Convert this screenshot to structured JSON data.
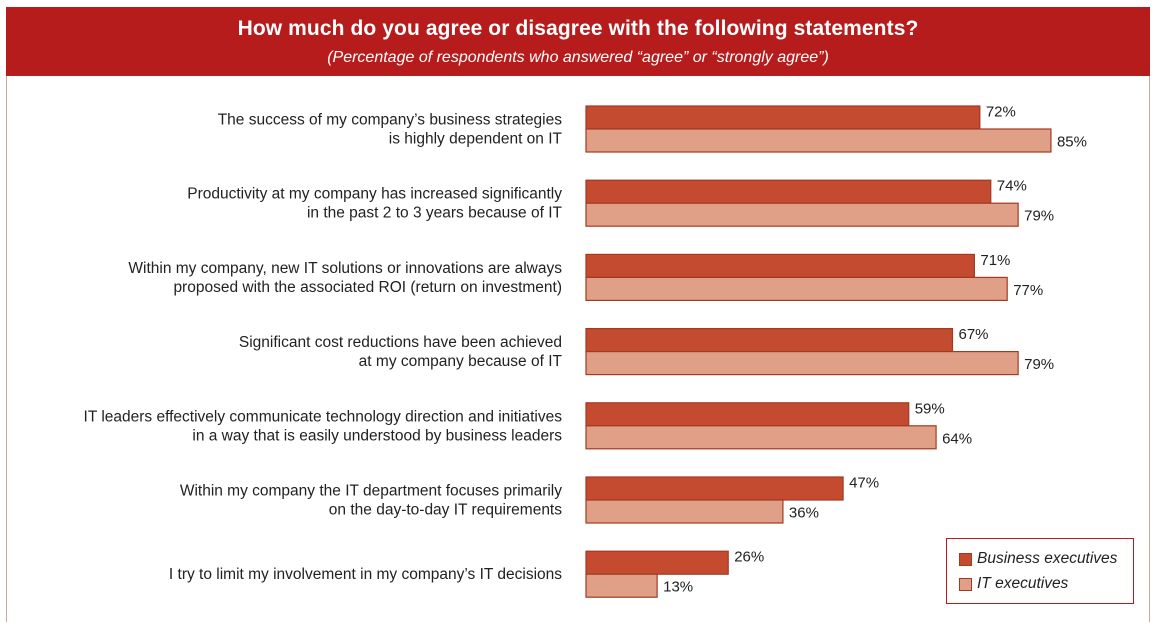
{
  "header": {
    "title": "How much do you agree or disagree with the following statements?",
    "subtitle": "(Percentage of respondents who answered “agree” or “strongly agree”)"
  },
  "colors": {
    "header_bg": "#b71c1c",
    "business": "#c44a30",
    "it": "#e0a088",
    "bar_border": "#a23a22"
  },
  "legend": {
    "business": "Business executives",
    "it": "IT executives"
  },
  "chart_data": {
    "type": "bar",
    "orientation": "horizontal",
    "title": "How much do you agree or disagree with the following statements?",
    "subtitle": "(Percentage of respondents who answered “agree” or “strongly agree”)",
    "value_suffix": "%",
    "xlim": [
      0,
      100
    ],
    "grid": false,
    "legend_position": "bottom-right",
    "categories": [
      [
        "The success of my company’s business strategies",
        "is highly dependent on IT"
      ],
      [
        "Productivity at my company has increased significantly",
        "in the past 2 to 3 years because of IT"
      ],
      [
        "Within my company, new IT solutions or innovations are always",
        "proposed with the associated ROI (return on investment)"
      ],
      [
        "Significant cost reductions have been achieved",
        "at my company because of IT"
      ],
      [
        "IT leaders effectively communicate technology direction and initiatives",
        "in a way that is easily understood by business leaders"
      ],
      [
        "Within my company the IT department focuses primarily",
        "on the day-to-day IT requirements"
      ],
      [
        "I try to limit my involvement in my company’s IT decisions"
      ]
    ],
    "series": [
      {
        "name": "Business executives",
        "values": [
          72,
          74,
          71,
          67,
          59,
          47,
          26
        ]
      },
      {
        "name": "IT executives",
        "values": [
          85,
          79,
          77,
          79,
          64,
          36,
          13
        ]
      }
    ]
  }
}
